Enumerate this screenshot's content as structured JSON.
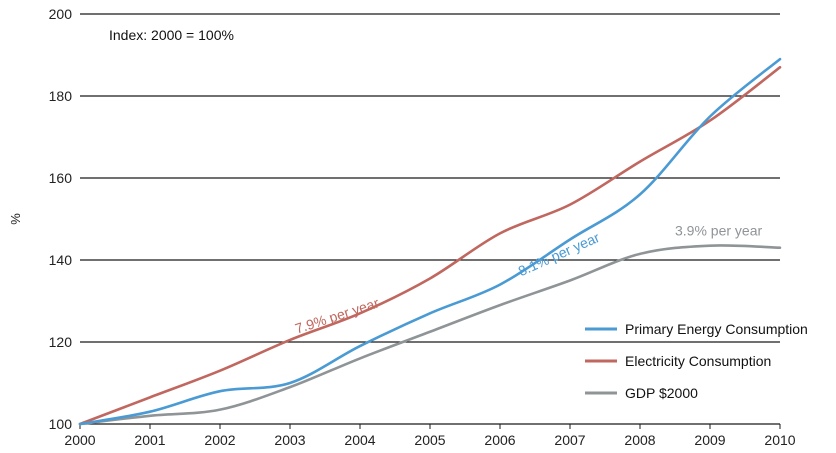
{
  "chart_data": {
    "type": "line",
    "title": "",
    "xlabel": "",
    "ylabel": "%",
    "note": "Index: 2000 = 100%",
    "x": [
      2000,
      2001,
      2002,
      2003,
      2004,
      2005,
      2006,
      2007,
      2008,
      2009,
      2010
    ],
    "x_ticks": [
      "2000",
      "2001",
      "2002",
      "2003",
      "2004",
      "2005",
      "2006",
      "2007",
      "2008",
      "2009",
      "2010"
    ],
    "y_ticks": [
      "100",
      "120",
      "140",
      "160",
      "180",
      "200"
    ],
    "xlim": [
      2000,
      2010
    ],
    "ylim": [
      100,
      200
    ],
    "grid": "horizontal",
    "legend_position": "bottom-right",
    "series": [
      {
        "name": "Primary Energy Consumption",
        "color": "#4a9ad4",
        "values": [
          100,
          103,
          108,
          110,
          119,
          127,
          134,
          145,
          156,
          175,
          189
        ]
      },
      {
        "name": "Electricity Consumption",
        "color": "#c0675f",
        "values": [
          100,
          106.5,
          113,
          120.5,
          127,
          135.5,
          146.5,
          153.5,
          164,
          174,
          187
        ]
      },
      {
        "name": "GDP $2000",
        "color": "#8f9497",
        "values": [
          100,
          102,
          103.5,
          109,
          116,
          122.5,
          129,
          135,
          141.5,
          143.5,
          143
        ]
      }
    ],
    "annotations": [
      {
        "text": "7.9% per year",
        "color": "#c0675f",
        "x": 2003.1,
        "y": 122,
        "rotate": -18
      },
      {
        "text": "8.1% per year",
        "color": "#4a9ad4",
        "x": 2006.3,
        "y": 136,
        "rotate": -24
      },
      {
        "text": "3.9% per year",
        "color": "#8f9497",
        "x": 2008.5,
        "y": 146,
        "rotate": 0
      }
    ]
  }
}
